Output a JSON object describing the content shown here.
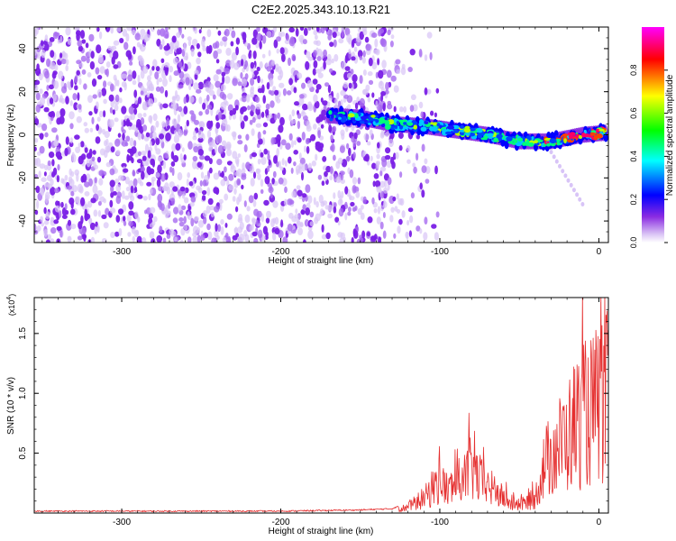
{
  "title": "C2E2.2025.343.10.13.R21",
  "chart_data": [
    {
      "type": "heatmap",
      "title": "C2E2.2025.343.10.13.R21",
      "xlabel": "Height of straight line (km)",
      "ylabel": "Frequency (Hz)",
      "xlim": [
        -355,
        6
      ],
      "ylim": [
        -50,
        50
      ],
      "xticks": [
        -300,
        -200,
        -100,
        0
      ],
      "yticks": [
        -40,
        -20,
        0,
        20,
        40
      ],
      "colorbar": {
        "label": "Normalized spectral amplitude",
        "range": [
          0,
          1
        ],
        "ticks": [
          0.0,
          0.2,
          0.4,
          0.6,
          0.8
        ],
        "tick_labels": [
          "0.0",
          "0.2",
          "0.4",
          "0.6",
          "0.8"
        ],
        "colormap": [
          "#ffffff",
          "#8a2be2",
          "#0000ff",
          "#00ffff",
          "#00ff00",
          "#ffff00",
          "#ff0000",
          "#ff00ff"
        ]
      },
      "noise_region_x": [
        -355,
        -135
      ],
      "signal_track": {
        "x": [
          -170,
          -150,
          -130,
          -110,
          -90,
          -70,
          -50,
          -30,
          -10,
          5
        ],
        "y": [
          9,
          8,
          5,
          4,
          2,
          0,
          -3,
          -3,
          0,
          1
        ]
      }
    },
    {
      "type": "line",
      "xlabel": "Height of straight line (km)",
      "ylabel": "SNR (10 * v/v)",
      "y_scale_label": "(x10",
      "y_scale_exp": "4",
      "y_scale_close": ")",
      "xlim": [
        -355,
        6
      ],
      "ylim": [
        0,
        1.8
      ],
      "xticks": [
        -300,
        -200,
        -100,
        0
      ],
      "yticks": [
        0.5,
        1.0,
        1.5
      ],
      "ytick_labels": [
        "0.5",
        "1.0",
        "1.5"
      ],
      "series": [
        {
          "name": "SNR",
          "color": "#e53030",
          "x": [
            -355,
            -300,
            -250,
            -200,
            -150,
            -130,
            -120,
            -110,
            -105,
            -100,
            -95,
            -90,
            -85,
            -80,
            -75,
            -70,
            -65,
            -60,
            -55,
            -50,
            -45,
            -40,
            -35,
            -30,
            -25,
            -20,
            -15,
            -10,
            -5,
            0,
            5
          ],
          "y": [
            0.01,
            0.01,
            0.01,
            0.01,
            0.02,
            0.03,
            0.08,
            0.2,
            0.3,
            0.45,
            0.3,
            0.4,
            0.45,
            0.6,
            0.45,
            0.35,
            0.3,
            0.2,
            0.12,
            0.1,
            0.15,
            0.2,
            0.6,
            0.8,
            0.9,
            1.0,
            1.2,
            1.3,
            1.35,
            1.45,
            1.55
          ]
        }
      ]
    }
  ]
}
